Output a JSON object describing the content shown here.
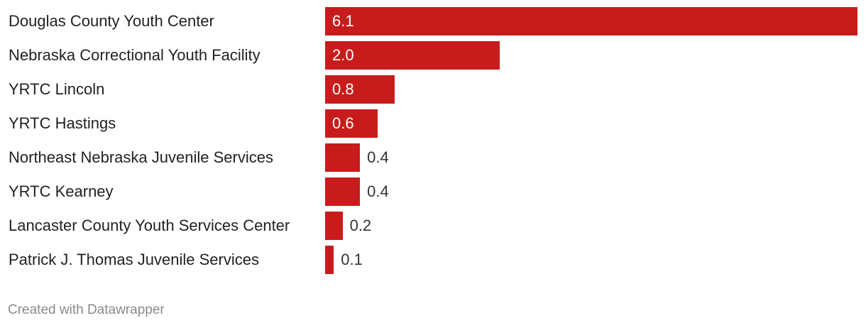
{
  "chart_data": {
    "type": "bar",
    "orientation": "horizontal",
    "categories": [
      "Douglas County Youth Center",
      "Nebraska Correctional Youth Facility",
      "YRTC Lincoln",
      "YRTC Hastings",
      "Northeast Nebraska Juvenile Services",
      "YRTC Kearney",
      "Lancaster County Youth Services Center",
      "Patrick J. Thomas Juvenile Services"
    ],
    "values": [
      6.1,
      2.0,
      0.8,
      0.6,
      0.4,
      0.4,
      0.2,
      0.1
    ],
    "value_labels": [
      "6.1",
      "2.0",
      "0.8",
      "0.6",
      "0.4",
      "0.4",
      "0.2",
      "0.1"
    ],
    "xlim": [
      0,
      6.1
    ],
    "grid": false,
    "bar_color": "#c81c1c"
  },
  "credit": "Created with Datawrapper"
}
